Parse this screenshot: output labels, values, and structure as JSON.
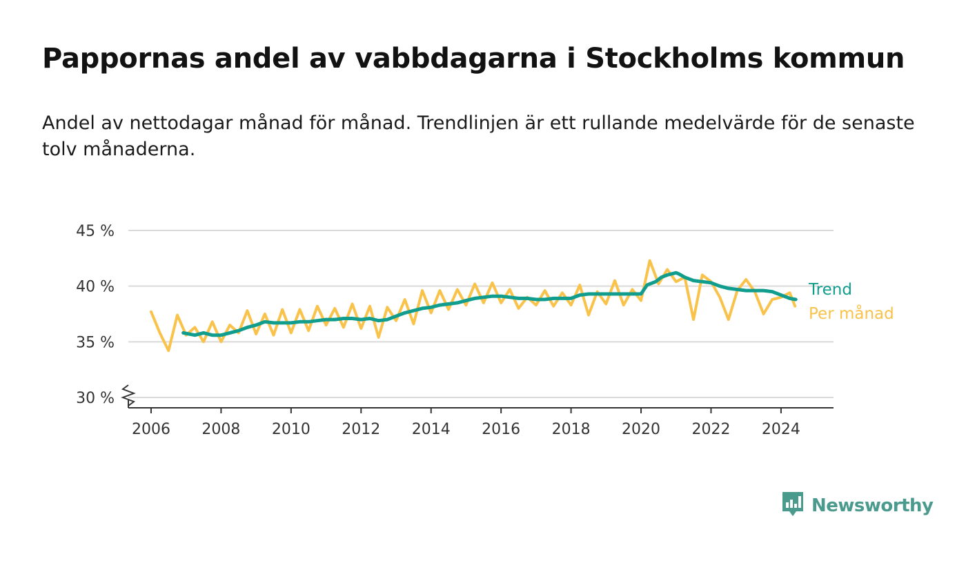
{
  "title": "Pappornas andel av vabbdagarna i Stockholms kommun",
  "subtitle": "Andel av nettodagar månad för månad. Trendlinjen är ett rullande medelvärde för de senaste tolv månaderna.",
  "logo": {
    "text": "Newsworthy",
    "icon": "newsworthy-logo-icon",
    "color": "#4a9a8e"
  },
  "colors": {
    "trend": "#119d8d",
    "monthly": "#f9c24b",
    "grid": "#d9d9d9",
    "axis": "#333333"
  },
  "chart_data": {
    "type": "line",
    "title": "Pappornas andel av vabbdagarna i Stockholms kommun",
    "xlabel": "",
    "ylabel": "",
    "xlim": [
      2005.35,
      2025.5
    ],
    "ylim": [
      29,
      45
    ],
    "y_axis_break": true,
    "grid": true,
    "legend": "right, at line ends",
    "x_ticks": [
      2006,
      2008,
      2010,
      2012,
      2014,
      2016,
      2018,
      2020,
      2022,
      2024
    ],
    "y_ticks": [
      30,
      35,
      40,
      45
    ],
    "y_tick_labels": [
      "30 %",
      "35 %",
      "40 %",
      "45 %"
    ],
    "series": [
      {
        "name": "Per månad",
        "color": "#f9c24b",
        "x": [
          2006.0,
          2006.25,
          2006.5,
          2006.75,
          2007.0,
          2007.25,
          2007.5,
          2007.75,
          2008.0,
          2008.25,
          2008.5,
          2008.75,
          2009.0,
          2009.25,
          2009.5,
          2009.75,
          2010.0,
          2010.25,
          2010.5,
          2010.75,
          2011.0,
          2011.25,
          2011.5,
          2011.75,
          2012.0,
          2012.25,
          2012.5,
          2012.75,
          2013.0,
          2013.25,
          2013.5,
          2013.75,
          2014.0,
          2014.25,
          2014.5,
          2014.75,
          2015.0,
          2015.25,
          2015.5,
          2015.75,
          2016.0,
          2016.25,
          2016.5,
          2016.75,
          2017.0,
          2017.25,
          2017.5,
          2017.75,
          2018.0,
          2018.25,
          2018.5,
          2018.75,
          2019.0,
          2019.25,
          2019.5,
          2019.75,
          2020.0,
          2020.25,
          2020.5,
          2020.75,
          2021.0,
          2021.25,
          2021.5,
          2021.75,
          2022.0,
          2022.25,
          2022.5,
          2022.75,
          2023.0,
          2023.25,
          2023.5,
          2023.75,
          2024.0,
          2024.25,
          2024.4
        ],
        "values": [
          37.7,
          35.8,
          34.2,
          37.4,
          35.6,
          36.3,
          35.0,
          36.8,
          35.0,
          36.5,
          35.8,
          37.8,
          35.7,
          37.5,
          35.6,
          37.9,
          35.8,
          37.9,
          36.0,
          38.2,
          36.5,
          38.0,
          36.3,
          38.4,
          36.2,
          38.2,
          35.4,
          38.1,
          36.9,
          38.8,
          36.6,
          39.6,
          37.6,
          39.6,
          37.9,
          39.7,
          38.3,
          40.2,
          38.5,
          40.3,
          38.5,
          39.7,
          38.0,
          39.0,
          38.3,
          39.6,
          38.2,
          39.4,
          38.3,
          40.1,
          37.4,
          39.5,
          38.4,
          40.5,
          38.3,
          39.7,
          38.7,
          42.3,
          40.2,
          41.5,
          40.4,
          40.8,
          37.0,
          41.0,
          40.4,
          39.0,
          37.0,
          39.6,
          40.6,
          39.5,
          37.5,
          38.8,
          39.0,
          39.4,
          38.2
        ]
      },
      {
        "name": "Trend",
        "color": "#119d8d",
        "x": [
          2006.92,
          2007.25,
          2007.5,
          2007.75,
          2008.0,
          2008.25,
          2008.5,
          2008.75,
          2009.0,
          2009.25,
          2009.5,
          2009.75,
          2010.0,
          2010.25,
          2010.5,
          2010.75,
          2011.0,
          2011.25,
          2011.5,
          2011.75,
          2012.0,
          2012.25,
          2012.5,
          2012.75,
          2013.0,
          2013.25,
          2013.5,
          2013.75,
          2014.0,
          2014.25,
          2014.5,
          2014.75,
          2015.0,
          2015.25,
          2015.5,
          2015.75,
          2016.0,
          2016.25,
          2016.5,
          2016.75,
          2017.0,
          2017.25,
          2017.5,
          2017.75,
          2018.0,
          2018.25,
          2018.5,
          2018.75,
          2019.0,
          2019.25,
          2019.5,
          2019.75,
          2020.0,
          2020.17,
          2020.42,
          2020.58,
          2020.75,
          2021.0,
          2021.08,
          2021.25,
          2021.5,
          2021.75,
          2022.0,
          2022.25,
          2022.5,
          2022.75,
          2023.0,
          2023.25,
          2023.5,
          2023.75,
          2024.0,
          2024.25,
          2024.42
        ],
        "values": [
          35.8,
          35.6,
          35.8,
          35.6,
          35.6,
          35.8,
          36.0,
          36.3,
          36.5,
          36.8,
          36.7,
          36.7,
          36.7,
          36.8,
          36.8,
          36.9,
          37.0,
          37.0,
          37.1,
          37.1,
          37.0,
          37.1,
          36.9,
          37.0,
          37.3,
          37.6,
          37.8,
          38.0,
          38.1,
          38.3,
          38.4,
          38.5,
          38.7,
          38.9,
          39.0,
          39.1,
          39.1,
          39.0,
          38.9,
          38.9,
          38.8,
          38.8,
          38.9,
          38.9,
          38.9,
          39.2,
          39.3,
          39.3,
          39.3,
          39.3,
          39.3,
          39.3,
          39.3,
          40.1,
          40.4,
          40.8,
          41.0,
          41.2,
          41.1,
          40.8,
          40.5,
          40.4,
          40.3,
          40.0,
          39.8,
          39.7,
          39.6,
          39.6,
          39.6,
          39.5,
          39.2,
          38.9,
          38.8
        ]
      }
    ]
  }
}
